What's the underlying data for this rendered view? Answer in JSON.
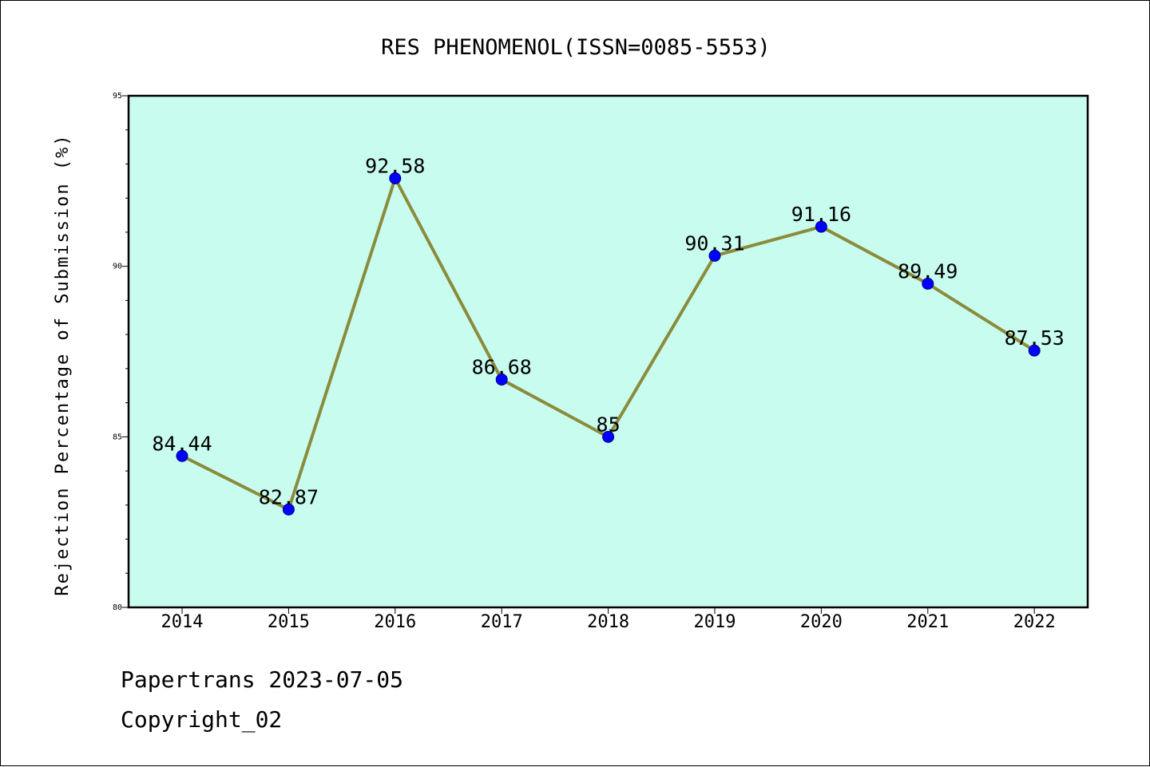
{
  "chart_data": {
    "type": "line",
    "title": "RES PHENOMENOL(ISSN=0085-5553)",
    "xlabel": "",
    "ylabel": "Rejection Percentage of Submission (%)",
    "categories": [
      "2014",
      "2015",
      "2016",
      "2017",
      "2018",
      "2019",
      "2020",
      "2021",
      "2022"
    ],
    "series": [
      {
        "values": [
          84.44,
          82.87,
          92.58,
          86.68,
          85,
          90.31,
          91.16,
          89.49,
          87.53
        ],
        "labels": [
          "84.44",
          "82.87",
          "92.58",
          "86.68",
          "85",
          "90.31",
          "91.16",
          "89.49",
          "87.53"
        ]
      }
    ],
    "ylim": [
      80,
      95
    ],
    "yticks": [
      "80",
      "85",
      "90",
      "95"
    ],
    "grid": false,
    "colors": {
      "plot_background": "#c8fcee",
      "line": "#8b8b3c",
      "marker": "#0000ff",
      "marker_edge": "#00008b"
    }
  },
  "footer": {
    "line1": "Papertrans 2023-07-05",
    "line2": "Copyright_02"
  }
}
